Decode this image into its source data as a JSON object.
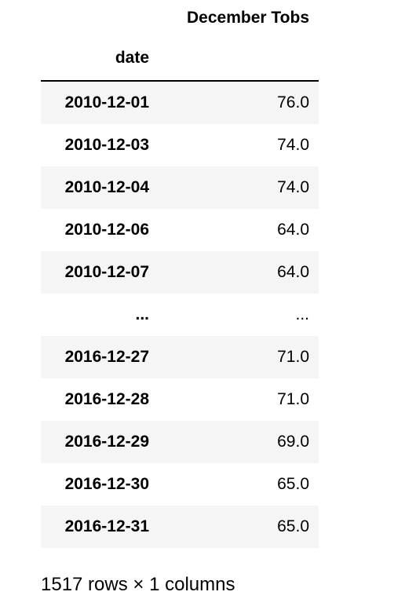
{
  "dataframe": {
    "column_header": "December Tobs",
    "index_name": "date",
    "rows": [
      {
        "date": "2010-12-01",
        "value": "76.0"
      },
      {
        "date": "2010-12-03",
        "value": "74.0"
      },
      {
        "date": "2010-12-04",
        "value": "74.0"
      },
      {
        "date": "2010-12-06",
        "value": "64.0"
      },
      {
        "date": "2010-12-07",
        "value": "64.0"
      },
      {
        "date": "...",
        "value": "..."
      },
      {
        "date": "2016-12-27",
        "value": "71.0"
      },
      {
        "date": "2016-12-28",
        "value": "71.0"
      },
      {
        "date": "2016-12-29",
        "value": "69.0"
      },
      {
        "date": "2016-12-30",
        "value": "65.0"
      },
      {
        "date": "2016-12-31",
        "value": "65.0"
      }
    ],
    "shape_summary": "1517 rows × 1 columns"
  }
}
